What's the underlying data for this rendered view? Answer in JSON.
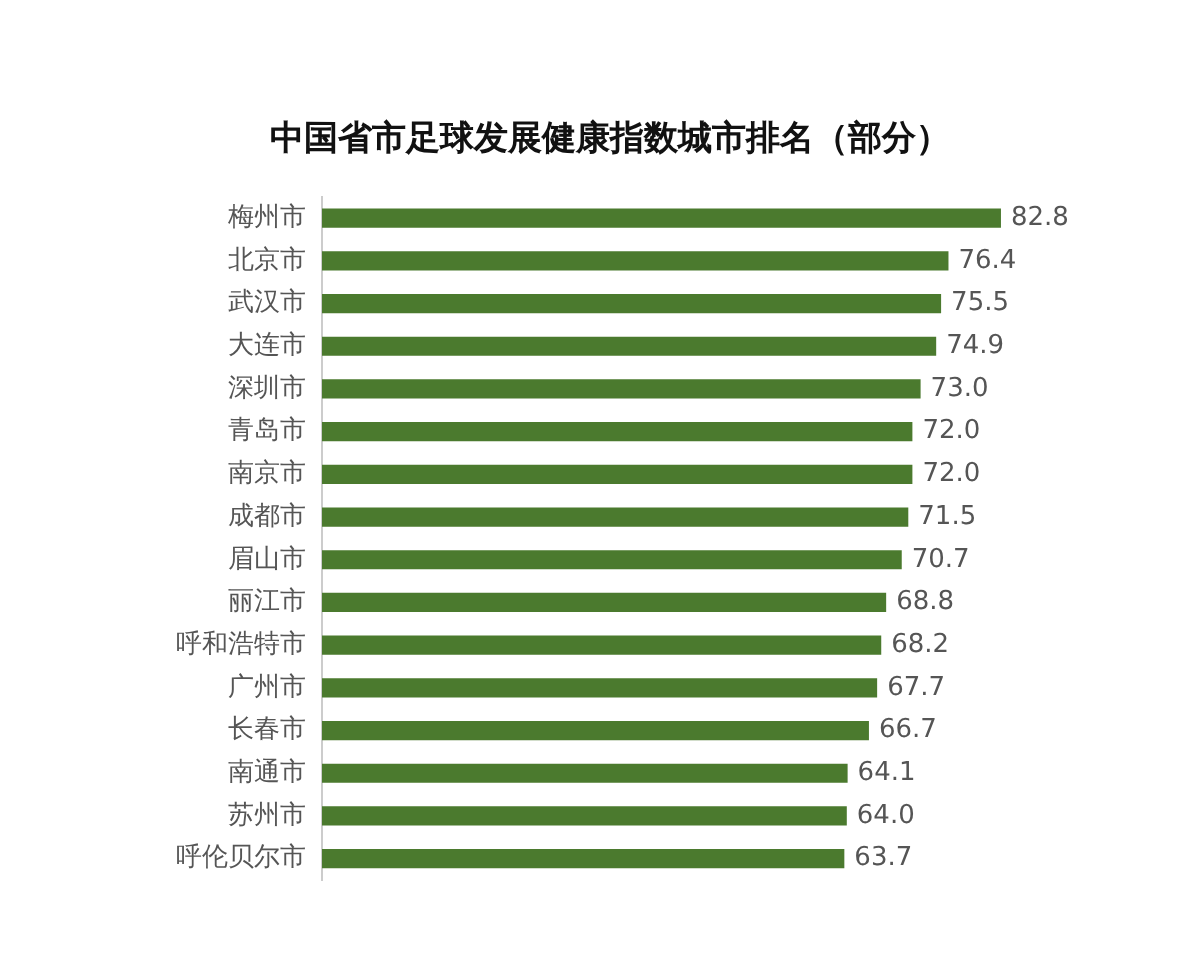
{
  "chart_data": {
    "type": "bar",
    "orientation": "horizontal",
    "title": "中国省市足球发展健康指数城市排名（部分）",
    "categories": [
      "梅州市",
      "北京市",
      "武汉市",
      "大连市",
      "深圳市",
      "青岛市",
      "南京市",
      "成都市",
      "眉山市",
      "丽江市",
      "呼和浩特市",
      "广州市",
      "长春市",
      "南通市",
      "苏州市",
      "呼伦贝尔市"
    ],
    "values": [
      82.8,
      76.4,
      75.5,
      74.9,
      73.0,
      72.0,
      72.0,
      71.5,
      70.7,
      68.8,
      68.2,
      67.7,
      66.7,
      64.1,
      64.0,
      63.7
    ],
    "value_labels": [
      "82.8",
      "76.4",
      "75.5",
      "74.9",
      "73.0",
      "72.0",
      "72.0",
      "71.5",
      "70.7",
      "68.8",
      "68.2",
      "67.7",
      "66.7",
      "64.1",
      "64.0",
      "63.7"
    ],
    "color": "#4b7a2e",
    "legend": false
  }
}
